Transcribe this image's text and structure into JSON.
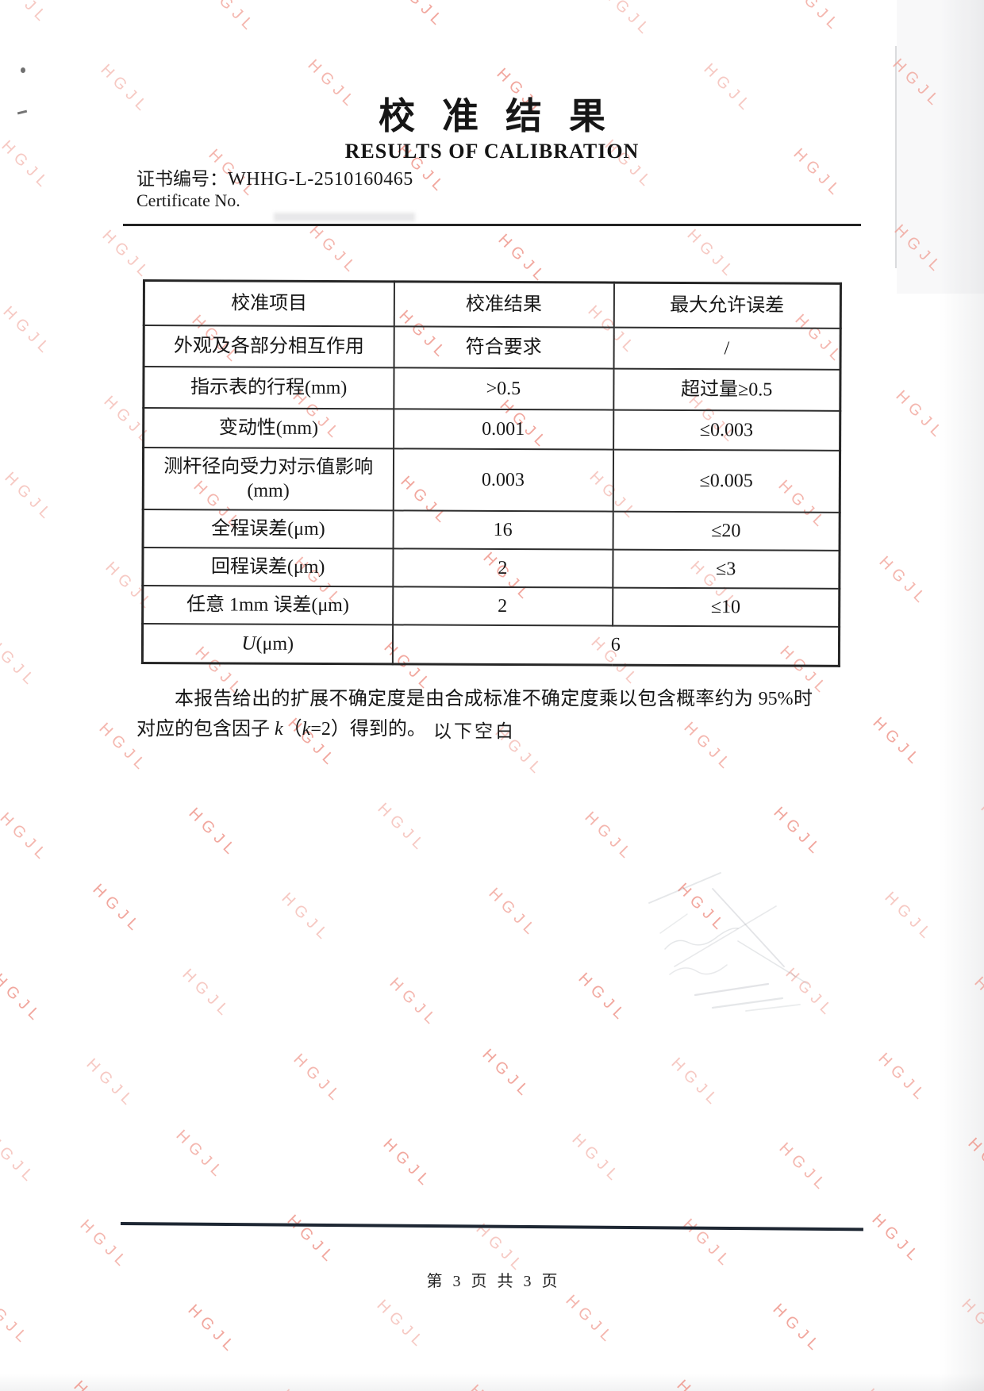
{
  "header": {
    "title_cn": "校准结果",
    "title_en": "RESULTS OF CALIBRATION",
    "cert_label_cn": "证书编号：",
    "cert_number": "WHHG-L-2510160465",
    "cert_label_en": "Certificate No."
  },
  "table": {
    "headers": [
      "校准项目",
      "校准结果",
      "最大允许误差"
    ],
    "rows": [
      {
        "item": [
          "外观及各部分相互作用"
        ],
        "result": "符合要求",
        "mpe": "/"
      },
      {
        "item": [
          "指示表的行程(mm)"
        ],
        "result": ">0.5",
        "mpe": "超过量≥0.5"
      },
      {
        "item": [
          "变动性(mm)"
        ],
        "result": "0.001",
        "mpe": "≤0.003"
      },
      {
        "item": [
          "测杆径向受力对示值影响",
          "(mm)"
        ],
        "result": "0.003",
        "mpe": "≤0.005"
      },
      {
        "item": [
          "全程误差(μm)"
        ],
        "result": "16",
        "mpe": "≤20"
      },
      {
        "item": [
          "回程误差(μm)"
        ],
        "result": "2",
        "mpe": "≤3"
      },
      {
        "item": [
          "任意 1mm 误差(μm)"
        ],
        "result": "2",
        "mpe": "≤10"
      }
    ],
    "uncertainty_row": {
      "label_symbol": "U",
      "label_unit": "(μm)",
      "value": "6"
    }
  },
  "note": {
    "segments": [
      {
        "text": "本报告给出的扩展不确定度是由合成标准不确定度乘以包含概率约为 95%时对应的包含因子 ",
        "italic": false
      },
      {
        "text": "k",
        "italic": true
      },
      {
        "text": "（",
        "italic": false
      },
      {
        "text": "k",
        "italic": true
      },
      {
        "text": "=2）得到的。",
        "italic": false
      }
    ],
    "closing": "以下空白"
  },
  "footer": {
    "page_indicator": "第 3 页 共 3 页"
  },
  "watermark": {
    "text": "HGJL",
    "color": "#ef9489"
  }
}
